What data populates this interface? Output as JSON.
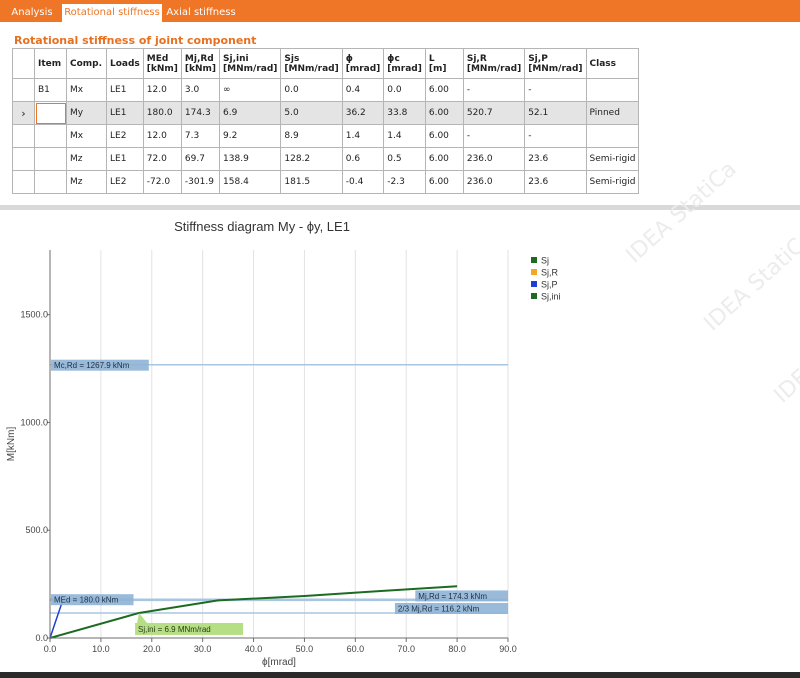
{
  "tabs": [
    {
      "label": "Analysis"
    },
    {
      "label": "Rotational stiffness"
    },
    {
      "label": "Axial stiffness"
    }
  ],
  "section_title": "Rotational stiffness of joint component",
  "table": {
    "headers": [
      {
        "l1": "Item",
        "l2": ""
      },
      {
        "l1": "Comp.",
        "l2": ""
      },
      {
        "l1": "Loads",
        "l2": ""
      },
      {
        "l1": "MEd",
        "l2": "[kNm]"
      },
      {
        "l1": "Mj,Rd",
        "l2": "[kNm]"
      },
      {
        "l1": "Sj,ini",
        "l2": "[MNm/rad]"
      },
      {
        "l1": "Sjs",
        "l2": "[MNm/rad]"
      },
      {
        "l1": "ϕ",
        "l2": "[mrad]"
      },
      {
        "l1": "ϕc",
        "l2": "[mrad]"
      },
      {
        "l1": "L",
        "l2": "[m]"
      },
      {
        "l1": "Sj,R",
        "l2": "[MNm/rad]"
      },
      {
        "l1": "Sj,P",
        "l2": "[MNm/rad]"
      },
      {
        "l1": "Class",
        "l2": ""
      }
    ],
    "selected_indicator": "›",
    "rows": [
      [
        "B1",
        "Mx",
        "LE1",
        "12.0",
        "3.0",
        "∞",
        "0.0",
        "0.4",
        "0.0",
        "6.00",
        "-",
        "-",
        ""
      ],
      [
        "",
        "My",
        "LE1",
        "180.0",
        "174.3",
        "6.9",
        "5.0",
        "36.2",
        "33.8",
        "6.00",
        "520.7",
        "52.1",
        "Pinned"
      ],
      [
        "",
        "Mx",
        "LE2",
        "12.0",
        "7.3",
        "9.2",
        "8.9",
        "1.4",
        "1.4",
        "6.00",
        "-",
        "-",
        ""
      ],
      [
        "",
        "Mz",
        "LE1",
        "72.0",
        "69.7",
        "138.9",
        "128.2",
        "0.6",
        "0.5",
        "6.00",
        "236.0",
        "23.6",
        "Semi-rigid"
      ],
      [
        "",
        "Mz",
        "LE2",
        "-72.0",
        "-301.9",
        "158.4",
        "181.5",
        "-0.4",
        "-2.3",
        "6.00",
        "236.0",
        "23.6",
        "Semi-rigid"
      ]
    ]
  },
  "watermark": "IDEA StatiCa",
  "colors": {
    "accent": "#ee7626",
    "sj": "#1d6b22",
    "sj_r": "#f5a623",
    "sj_p": "#1c3fd6",
    "sj_ini": "#1d6b22",
    "ref_line": "#a9c6e0",
    "ref_label_bg": "#8fb3d6",
    "sjini_label_bg": "#b6df85"
  },
  "chart_data": {
    "type": "line",
    "title": "Stiffness diagram My - ϕy, LE1",
    "xlabel": "ϕ[mrad]",
    "ylabel": "M[kNm]",
    "xlim": [
      0,
      90
    ],
    "ylim": [
      0,
      1800
    ],
    "xticks": [
      0,
      10,
      20,
      30,
      40,
      50,
      60,
      70,
      80,
      90
    ],
    "xtick_labels": [
      "0.0",
      "10.0",
      "20.0",
      "30.0",
      "40.0",
      "50.0",
      "60.0",
      "70.0",
      "80.0",
      "90.0"
    ],
    "yticks": [
      0,
      500,
      1000,
      1500
    ],
    "ytick_labels": [
      "0.0",
      "500.0",
      "1000.0",
      "1500.0"
    ],
    "grid": true,
    "legend_position": "top-right",
    "legend": [
      {
        "name": "Sj",
        "color_key": "sj"
      },
      {
        "name": "Sj,R",
        "color_key": "sj_r"
      },
      {
        "name": "Sj,P",
        "color_key": "sj_p"
      },
      {
        "name": "Sj,ini",
        "color_key": "sj_ini"
      }
    ],
    "series": [
      {
        "name": "Sj",
        "color_key": "sj",
        "x": [
          0,
          17.5,
          33,
          50,
          65,
          80
        ],
        "y": [
          0,
          116.2,
          174.3,
          195,
          218,
          240
        ]
      },
      {
        "name": "Sj,P",
        "color_key": "sj_p",
        "x": [
          0,
          2.5
        ],
        "y": [
          0,
          174.3
        ]
      }
    ],
    "reference_lines": [
      {
        "label": "Mc,Rd = 1267.9 kNm",
        "y": 1267.9,
        "label_side": "left"
      },
      {
        "label": "MEd = 180.0 kNm",
        "y": 180.0,
        "label_side": "left"
      },
      {
        "label": "Mj,Rd = 174.3 kNm",
        "y": 174.3,
        "label_side": "right"
      },
      {
        "label": "2/3 Mj,Rd = 116.2 kNm",
        "y": 116.2,
        "label_side": "right"
      }
    ],
    "annotations": [
      {
        "label": "Sj,ini = 6.9 MNm/rad",
        "x": 17.5,
        "y": 116.2
      }
    ]
  }
}
